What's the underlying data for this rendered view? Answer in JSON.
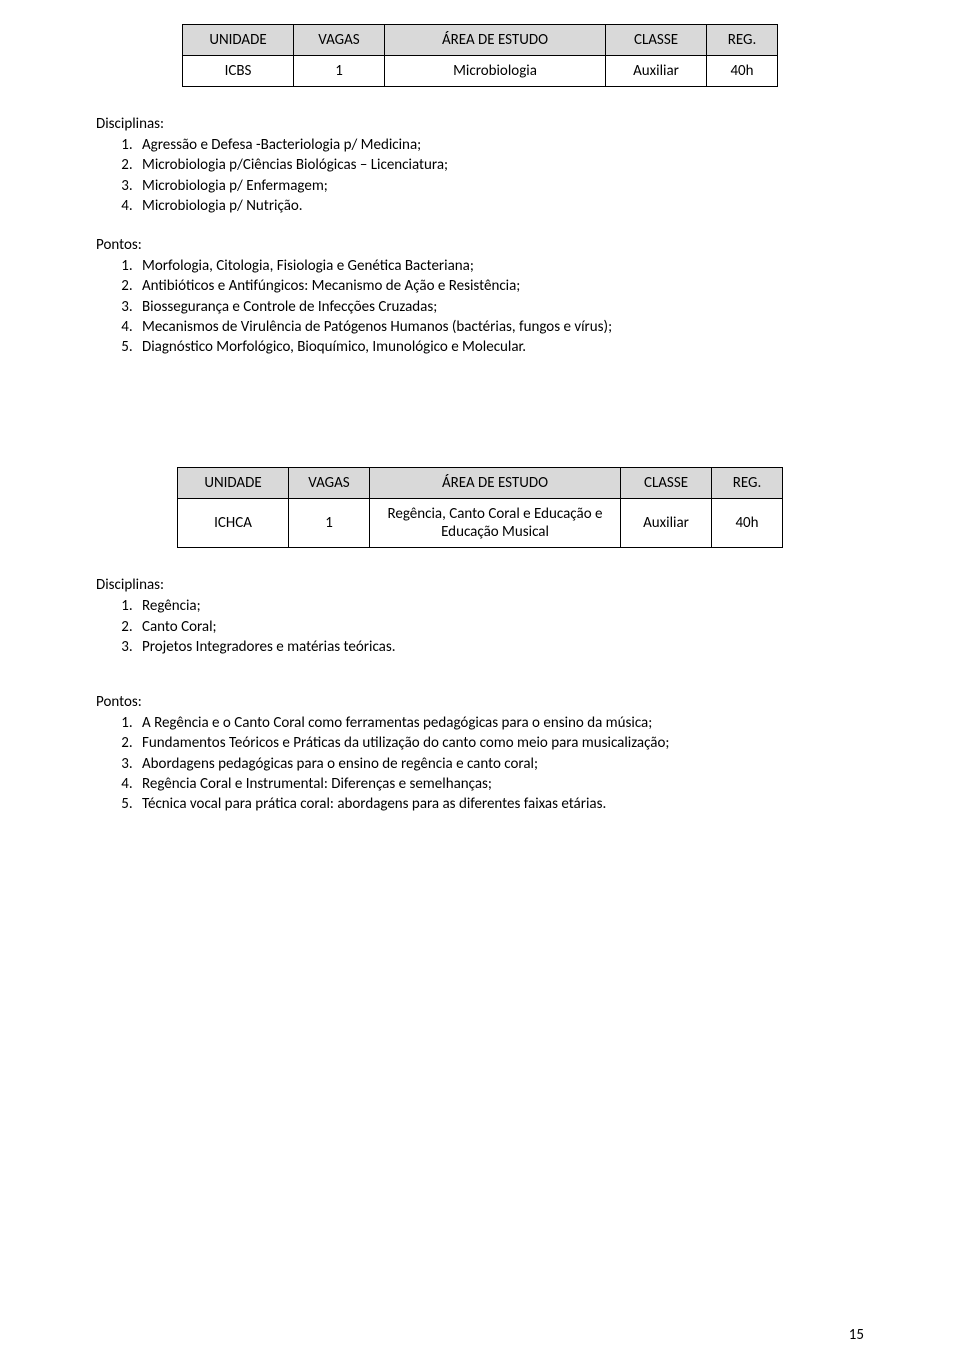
{
  "colors": {
    "header_bg": "#d9d9d9",
    "border": "#000000",
    "text": "#000000",
    "page_bg": "#ffffff"
  },
  "page_number": "15",
  "section1": {
    "table": {
      "headers": [
        "UNIDADE",
        "VAGAS",
        "ÁREA DE ESTUDO",
        "CLASSE",
        "REG."
      ],
      "row": [
        "ICBS",
        "1",
        "Microbiologia",
        "Auxiliar",
        "40h"
      ]
    },
    "disciplinas_label": "Disciplinas:",
    "disciplinas": [
      "Agressão e Defesa -Bacteriologia p/ Medicina;",
      "Microbiologia p/Ciências Biológicas – Licenciatura;",
      "Microbiologia p/ Enfermagem;",
      "Microbiologia p/ Nutrição."
    ],
    "pontos_label": "Pontos:",
    "pontos": [
      "Morfologia, Citologia, Fisiologia e Genética Bacteriana;",
      "Antibióticos e Antifúngicos: Mecanismo de Ação e Resistência;",
      "Biossegurança e Controle de Infecções Cruzadas;",
      "Mecanismos de Virulência de Patógenos Humanos (bactérias, fungos e vírus);",
      "Diagnóstico Morfológico, Bioquímico, Imunológico e Molecular."
    ]
  },
  "section2": {
    "table": {
      "headers": [
        "UNIDADE",
        "VAGAS",
        "ÁREA DE ESTUDO",
        "CLASSE",
        "REG."
      ],
      "row": [
        "ICHCA",
        "1",
        "Regência, Canto Coral e Educação e Educação Musical",
        "Auxiliar",
        "40h"
      ]
    },
    "disciplinas_label": "Disciplinas:",
    "disciplinas": [
      "Regência;",
      "Canto Coral;",
      "Projetos Integradores e matérias teóricas."
    ],
    "pontos_label": "Pontos:",
    "pontos": [
      "A Regência e o Canto Coral como ferramentas pedagógicas para o ensino da música;",
      "Fundamentos Teóricos e Práticas da utilização do canto como meio para musicalização;",
      "Abordagens pedagógicas para o ensino de regência e canto coral;",
      "Regência Coral e Instrumental: Diferenças e semelhanças;",
      "Técnica vocal para prática coral: abordagens para as diferentes faixas etárias."
    ]
  }
}
